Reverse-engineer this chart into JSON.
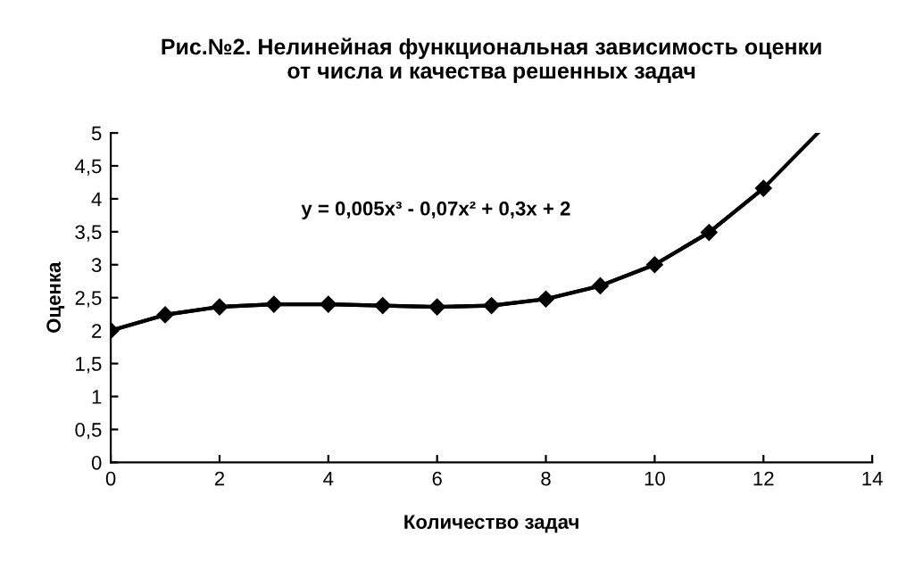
{
  "chart_data": {
    "type": "line",
    "title": "Рис.№2. Нелинейная функциональная зависимость оценки\nот числа и качества решенных задач",
    "xlabel": "Количество задач",
    "ylabel": "Оценка",
    "annotations": [
      "y = 0,005x³ - 0,07x² + 0,3x + 2"
    ],
    "series": [
      {
        "color": "#000000",
        "marker": "diamond",
        "x": [
          0,
          1,
          2,
          3,
          4,
          5,
          6,
          7,
          8,
          9,
          10,
          11,
          12
        ],
        "values": [
          2.0,
          2.24,
          2.36,
          2.4,
          2.4,
          2.38,
          2.36,
          2.38,
          2.48,
          2.68,
          3.0,
          3.49,
          4.16
        ]
      },
      {
        "type": "line",
        "color": "#000000",
        "marker": "none",
        "x": [
          0,
          1,
          2,
          3,
          4,
          5,
          6,
          7,
          8,
          9,
          10,
          11,
          12,
          13
        ],
        "values": [
          2.0,
          2.24,
          2.36,
          2.4,
          2.4,
          2.38,
          2.36,
          2.38,
          2.48,
          2.68,
          3.0,
          3.49,
          4.16,
          5.0
        ]
      }
    ],
    "xlim": [
      0,
      14
    ],
    "xticks": [
      0,
      2,
      4,
      6,
      8,
      10,
      12,
      14
    ],
    "ylim": [
      0,
      5
    ],
    "yticks": [
      0,
      {
        "value": 0.5,
        "label": "0,5"
      },
      1,
      {
        "value": 1.5,
        "label": "1,5"
      },
      2,
      {
        "value": 2.5,
        "label": "2,5"
      },
      3,
      {
        "value": 3.5,
        "label": "3,5"
      },
      4,
      {
        "value": 4.5,
        "label": "4,5"
      },
      5
    ],
    "grid": false,
    "legend": false,
    "line_style": "solid"
  }
}
